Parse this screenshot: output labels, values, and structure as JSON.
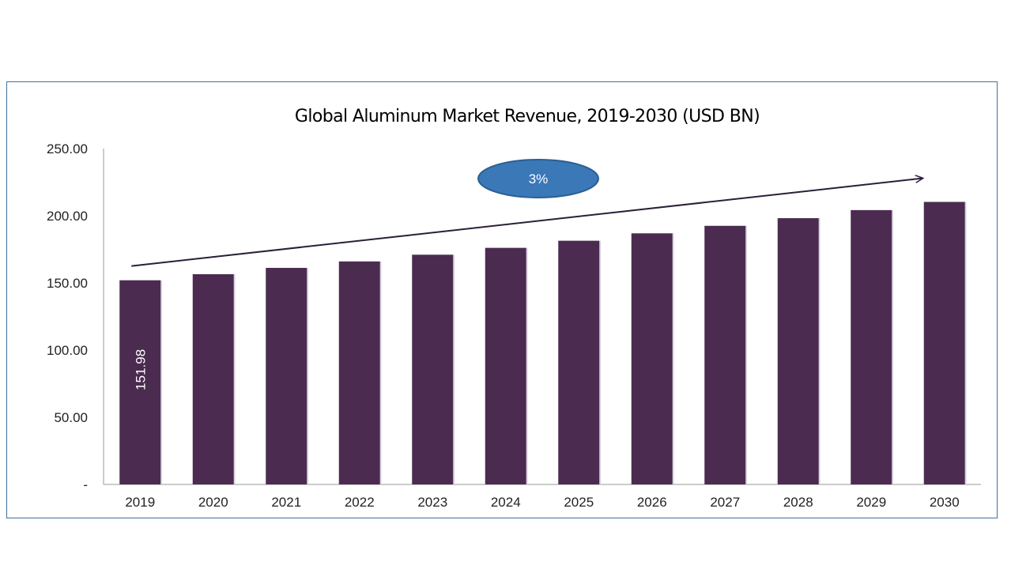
{
  "colors": {
    "bar": "#4b2c50",
    "frame": "#41719c",
    "bubble_fill": "#3a78b8",
    "bubble_stroke": "#2b5f91",
    "arrow": "#2b1f38"
  },
  "chart_data": {
    "type": "bar",
    "title": "Global Aluminum Market Revenue, 2019-2030 (USD BN)",
    "xlabel": "",
    "ylabel": "",
    "categories": [
      "2019",
      "2020",
      "2021",
      "2022",
      "2023",
      "2024",
      "2025",
      "2026",
      "2027",
      "2028",
      "2029",
      "2030"
    ],
    "values": [
      151.98,
      156.5,
      161.2,
      166.0,
      171.0,
      176.1,
      181.4,
      186.9,
      192.5,
      198.2,
      204.2,
      210.3
    ],
    "ylim": [
      0,
      250
    ],
    "y_ticks": [
      {
        "value": 0,
        "label": "-"
      },
      {
        "value": 50,
        "label": "50.00"
      },
      {
        "value": 100,
        "label": "100.00"
      },
      {
        "value": 150,
        "label": "150.00"
      },
      {
        "value": 200,
        "label": "200.00"
      },
      {
        "value": 250,
        "label": "250.00"
      }
    ],
    "data_labels": [
      {
        "index": 0,
        "text": "151.98"
      }
    ],
    "grid": false,
    "legend": "none",
    "annotation": {
      "text": "3%",
      "shape": "ellipse",
      "arrow": "upward trend arrow above bars"
    }
  }
}
